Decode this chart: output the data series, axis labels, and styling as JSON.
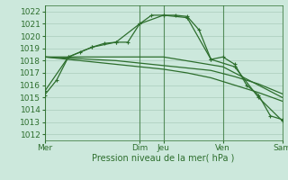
{
  "xlabel": "Pression niveau de la mer( hPa )",
  "background_color": "#cce8dc",
  "grid_color": "#aaccbb",
  "line_color": "#2d6e2d",
  "ylim": [
    1011.5,
    1022.5
  ],
  "yticks": [
    1012,
    1013,
    1014,
    1015,
    1016,
    1017,
    1018,
    1019,
    1020,
    1021,
    1022
  ],
  "x_day_labels": [
    "Mer",
    "Dim",
    "Jeu",
    "Ven",
    "Sam"
  ],
  "x_day_positions": [
    0,
    8,
    10,
    15,
    20
  ],
  "vline_positions": [
    0,
    8,
    10,
    15,
    20
  ],
  "series1_x": [
    0,
    1,
    2,
    3,
    4,
    5,
    6,
    7,
    8,
    9,
    10,
    11,
    12,
    13,
    14,
    15,
    16,
    17,
    18,
    19,
    20
  ],
  "series1_y": [
    1015.2,
    1016.4,
    1018.3,
    1018.7,
    1019.1,
    1019.4,
    1019.5,
    1019.5,
    1021.0,
    1021.7,
    1021.7,
    1021.7,
    1021.6,
    1020.5,
    1018.1,
    1018.3,
    1017.7,
    1016.0,
    1015.2,
    1013.5,
    1013.2
  ],
  "series2_x": [
    0,
    2,
    4,
    6,
    8,
    10,
    12,
    14,
    16,
    18,
    20
  ],
  "series2_y": [
    1015.5,
    1018.3,
    1019.1,
    1019.5,
    1021.0,
    1021.7,
    1021.5,
    1018.1,
    1017.5,
    1015.0,
    1013.1
  ],
  "series3_x": [
    0,
    2,
    4,
    6,
    8,
    10,
    12,
    14,
    16,
    18,
    20
  ],
  "series3_y": [
    1018.3,
    1018.2,
    1018.1,
    1018.0,
    1017.8,
    1017.6,
    1017.4,
    1017.2,
    1016.7,
    1016.1,
    1015.3
  ],
  "series4_x": [
    0,
    2,
    4,
    6,
    8,
    10,
    12,
    14,
    16,
    18,
    20
  ],
  "series4_y": [
    1018.3,
    1018.1,
    1017.9,
    1017.7,
    1017.5,
    1017.3,
    1017.0,
    1016.6,
    1016.0,
    1015.4,
    1014.7
  ],
  "series5_x": [
    0,
    5,
    10,
    15,
    20
  ],
  "series5_y": [
    1018.3,
    1018.3,
    1018.3,
    1017.5,
    1015.0
  ],
  "xlim": [
    0,
    20
  ],
  "fontsize_label": 7,
  "fontsize_tick": 6.5
}
